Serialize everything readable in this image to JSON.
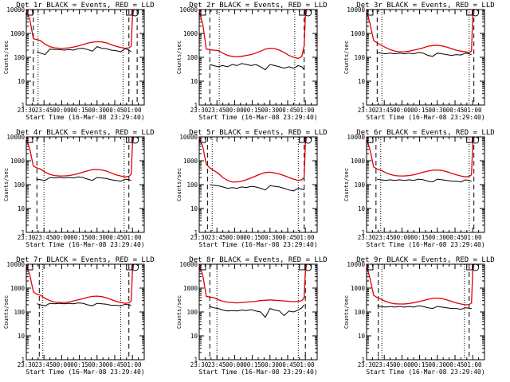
{
  "figure": {
    "x_tick_labels": [
      "23:30",
      "23:45",
      "00:00",
      "00:15",
      "00:30",
      "00:45",
      "01:00"
    ],
    "y_tick_labels": [
      "1",
      "10",
      "100",
      "1000",
      "10000"
    ],
    "xlabel": "Start Time (16-Mar-08 23:29:40)",
    "ylabel": "Counts/sec",
    "colors": {
      "events": "#000000",
      "lld": "#e00000",
      "axes": "#000000",
      "background": "#ffffff"
    },
    "markers": [
      "square",
      "circle"
    ]
  },
  "chart_data": [
    {
      "type": "line",
      "title": "Det  1r BLACK = Events, RED = LLD",
      "xlabel": "Start Time (16-Mar-08 23:29:40)",
      "ylabel": "Counts/sec",
      "x_unit": "minutes after 23:30",
      "xlim": [
        0,
        100
      ],
      "ylim": [
        1,
        10000
      ],
      "yscale": "log",
      "x": [
        0,
        3,
        6,
        9,
        12,
        16,
        20,
        24,
        28,
        32,
        36,
        40,
        44,
        48,
        52,
        56,
        60,
        64,
        68,
        72,
        76,
        80,
        84,
        87,
        89,
        90,
        91
      ],
      "series": [
        {
          "name": "LLD",
          "color": "#e00000",
          "values": [
            9000,
            3800,
            600,
            550,
            500,
            350,
            280,
            250,
            240,
            240,
            250,
            270,
            300,
            340,
            390,
            430,
            450,
            440,
            400,
            340,
            290,
            260,
            240,
            250,
            300,
            5000,
            9000
          ]
        },
        {
          "name": "Events",
          "color": "#000000",
          "values": [
            null,
            null,
            null,
            170,
            150,
            130,
            220,
            210,
            210,
            200,
            210,
            200,
            230,
            240,
            210,
            180,
            280,
            240,
            230,
            200,
            190,
            170,
            230,
            200,
            170,
            null,
            null
          ]
        }
      ],
      "dashed_lines_x": [
        6,
        87,
        94
      ],
      "dotted_lines_x": [
        10,
        82
      ]
    },
    {
      "type": "line",
      "title": "Det  2r BLACK = Events, RED = LLD",
      "xlabel": "Start Time (16-Mar-08 23:29:40)",
      "ylabel": "Counts/sec",
      "x_unit": "minutes after 23:30",
      "xlim": [
        0,
        100
      ],
      "ylim": [
        1,
        10000
      ],
      "yscale": "log",
      "x": [
        0,
        3,
        6,
        9,
        12,
        16,
        20,
        24,
        28,
        32,
        36,
        40,
        44,
        48,
        52,
        56,
        60,
        64,
        68,
        72,
        76,
        80,
        84,
        87,
        89,
        90,
        91
      ],
      "series": [
        {
          "name": "LLD",
          "color": "#e00000",
          "values": [
            9000,
            2500,
            220,
            210,
            200,
            190,
            150,
            120,
            110,
            105,
            110,
            120,
            130,
            150,
            180,
            220,
            240,
            230,
            200,
            160,
            120,
            100,
            90,
            110,
            300,
            5000,
            9000
          ]
        },
        {
          "name": "Events",
          "color": "#000000",
          "values": [
            null,
            null,
            null,
            50,
            45,
            40,
            45,
            40,
            50,
            45,
            55,
            50,
            45,
            50,
            40,
            30,
            50,
            45,
            40,
            35,
            40,
            35,
            45,
            40,
            30,
            null,
            null
          ]
        }
      ],
      "dashed_lines_x": [
        9,
        89
      ],
      "dotted_lines_x": [
        17,
        81
      ]
    },
    {
      "type": "line",
      "title": "Det  3r BLACK = Events, RED = LLD",
      "xlabel": "Start Time (16-Mar-08 23:29:40)",
      "ylabel": "Counts/sec",
      "x_unit": "minutes after 23:30",
      "xlim": [
        0,
        100
      ],
      "ylim": [
        1,
        10000
      ],
      "yscale": "log",
      "x": [
        0,
        3,
        6,
        9,
        12,
        16,
        20,
        24,
        28,
        32,
        36,
        40,
        44,
        48,
        52,
        56,
        60,
        64,
        68,
        72,
        76,
        80,
        84,
        87,
        89,
        90,
        91
      ],
      "series": [
        {
          "name": "LLD",
          "color": "#e00000",
          "values": [
            9000,
            2500,
            500,
            400,
            330,
            260,
            210,
            180,
            170,
            170,
            180,
            200,
            220,
            250,
            290,
            310,
            320,
            300,
            270,
            230,
            200,
            180,
            170,
            160,
            180,
            5000,
            9000
          ]
        },
        {
          "name": "Events",
          "color": "#000000",
          "values": [
            null,
            null,
            null,
            160,
            150,
            140,
            150,
            140,
            150,
            140,
            150,
            140,
            160,
            150,
            120,
            110,
            150,
            140,
            130,
            120,
            130,
            125,
            150,
            140,
            130,
            null,
            null
          ]
        }
      ],
      "dashed_lines_x": [
        9,
        91
      ],
      "dotted_lines_x": [
        13,
        87
      ]
    },
    {
      "type": "line",
      "title": "Det  4r BLACK = Events, RED = LLD",
      "xlabel": "Start Time (16-Mar-08 23:29:40)",
      "ylabel": "Counts/sec",
      "x_unit": "minutes after 23:30",
      "xlim": [
        0,
        100
      ],
      "ylim": [
        1,
        10000
      ],
      "yscale": "log",
      "x": [
        0,
        3,
        6,
        9,
        12,
        16,
        20,
        24,
        28,
        32,
        36,
        40,
        44,
        48,
        52,
        56,
        60,
        64,
        68,
        72,
        76,
        80,
        84,
        87,
        89,
        90,
        91
      ],
      "series": [
        {
          "name": "LLD",
          "color": "#e00000",
          "values": [
            9000,
            3000,
            600,
            500,
            450,
            330,
            270,
            240,
            230,
            230,
            240,
            260,
            290,
            330,
            380,
            420,
            430,
            410,
            370,
            310,
            260,
            230,
            210,
            220,
            280,
            5000,
            9000
          ]
        },
        {
          "name": "Events",
          "color": "#000000",
          "values": [
            null,
            null,
            null,
            170,
            160,
            150,
            200,
            190,
            200,
            190,
            200,
            190,
            210,
            200,
            170,
            150,
            200,
            190,
            180,
            160,
            150,
            140,
            170,
            160,
            150,
            null,
            null
          ]
        }
      ],
      "dashed_lines_x": [
        9,
        87
      ],
      "dotted_lines_x": [
        15,
        83
      ]
    },
    {
      "type": "line",
      "title": "Det  5r BLACK = Events, RED = LLD",
      "xlabel": "Start Time (16-Mar-08 23:29:40)",
      "ylabel": "Counts/sec",
      "x_unit": "minutes after 23:30",
      "xlim": [
        0,
        100
      ],
      "ylim": [
        1,
        10000
      ],
      "yscale": "log",
      "x": [
        0,
        3,
        6,
        9,
        12,
        16,
        20,
        24,
        28,
        32,
        36,
        40,
        44,
        48,
        52,
        56,
        60,
        64,
        68,
        72,
        76,
        80,
        84,
        87,
        89,
        90,
        91
      ],
      "series": [
        {
          "name": "LLD",
          "color": "#e00000",
          "values": [
            9000,
            4000,
            700,
            500,
            400,
            300,
            200,
            150,
            130,
            130,
            140,
            160,
            190,
            230,
            280,
            320,
            330,
            310,
            280,
            240,
            200,
            170,
            150,
            160,
            200,
            5000,
            9000
          ]
        },
        {
          "name": "Events",
          "color": "#000000",
          "values": [
            null,
            null,
            null,
            100,
            95,
            90,
            80,
            70,
            75,
            70,
            80,
            75,
            85,
            80,
            70,
            60,
            90,
            85,
            80,
            70,
            60,
            55,
            70,
            65,
            60,
            null,
            null
          ]
        }
      ],
      "dashed_lines_x": [
        7,
        89
      ],
      "dotted_lines_x": [
        11,
        84
      ]
    },
    {
      "type": "line",
      "title": "Det  6r BLACK = Events, RED = LLD",
      "xlabel": "Start Time (16-Mar-08 23:29:40)",
      "ylabel": "Counts/sec",
      "x_unit": "minutes after 23:30",
      "xlim": [
        0,
        100
      ],
      "ylim": [
        1,
        10000
      ],
      "yscale": "log",
      "x": [
        0,
        3,
        6,
        9,
        12,
        16,
        20,
        24,
        28,
        32,
        36,
        40,
        44,
        48,
        52,
        56,
        60,
        64,
        68,
        72,
        76,
        80,
        84,
        87,
        89,
        90,
        91
      ],
      "series": [
        {
          "name": "LLD",
          "color": "#e00000",
          "values": [
            9000,
            2800,
            550,
            450,
            400,
            320,
            270,
            240,
            230,
            230,
            240,
            260,
            290,
            330,
            370,
            400,
            410,
            390,
            350,
            300,
            260,
            230,
            210,
            220,
            260,
            5000,
            9000
          ]
        },
        {
          "name": "Events",
          "color": "#000000",
          "values": [
            null,
            null,
            null,
            170,
            160,
            150,
            160,
            150,
            160,
            150,
            160,
            150,
            170,
            160,
            140,
            130,
            170,
            160,
            150,
            140,
            140,
            130,
            160,
            150,
            140,
            null,
            null
          ]
        }
      ],
      "dashed_lines_x": [
        8,
        91
      ],
      "dotted_lines_x": [
        12,
        87
      ]
    },
    {
      "type": "line",
      "title": "Det  7r BLACK = Events, RED = LLD",
      "xlabel": "Start Time (16-Mar-08 23:29:40)",
      "ylabel": "Counts/sec",
      "x_unit": "minutes after 23:30",
      "xlim": [
        0,
        100
      ],
      "ylim": [
        1,
        10000
      ],
      "yscale": "log",
      "x": [
        0,
        3,
        6,
        9,
        12,
        16,
        20,
        24,
        28,
        32,
        36,
        40,
        44,
        48,
        52,
        56,
        60,
        64,
        68,
        72,
        76,
        80,
        84,
        87,
        89,
        90,
        91
      ],
      "series": [
        {
          "name": "LLD",
          "color": "#e00000",
          "values": [
            9000,
            3500,
            700,
            550,
            500,
            370,
            300,
            260,
            250,
            250,
            260,
            290,
            320,
            360,
            410,
            450,
            460,
            440,
            390,
            330,
            280,
            250,
            230,
            240,
            300,
            5000,
            9000
          ]
        },
        {
          "name": "Events",
          "color": "#000000",
          "values": [
            null,
            null,
            null,
            220,
            200,
            180,
            230,
            220,
            230,
            220,
            230,
            220,
            240,
            230,
            200,
            180,
            230,
            220,
            210,
            190,
            190,
            180,
            210,
            200,
            190,
            null,
            null
          ]
        }
      ],
      "dashed_lines_x": [
        11,
        87
      ],
      "dotted_lines_x": [
        14,
        80
      ]
    },
    {
      "type": "line",
      "title": "Det  8r BLACK = Events, RED = LLD",
      "xlabel": "Start Time (16-Mar-08 23:29:40)",
      "ylabel": "Counts/sec",
      "x_unit": "minutes after 23:30",
      "xlim": [
        0,
        100
      ],
      "ylim": [
        1,
        10000
      ],
      "yscale": "log",
      "x": [
        0,
        3,
        6,
        9,
        12,
        16,
        20,
        24,
        28,
        32,
        36,
        40,
        44,
        48,
        52,
        56,
        60,
        64,
        68,
        72,
        76,
        80,
        84,
        87,
        89,
        90,
        91
      ],
      "series": [
        {
          "name": "LLD",
          "color": "#e00000",
          "values": [
            9000,
            3500,
            450,
            420,
            400,
            330,
            280,
            260,
            250,
            240,
            250,
            260,
            270,
            280,
            300,
            310,
            320,
            310,
            300,
            290,
            280,
            270,
            280,
            300,
            400,
            5000,
            9000
          ]
        },
        {
          "name": "Events",
          "color": "#000000",
          "values": [
            null,
            null,
            null,
            170,
            150,
            140,
            120,
            110,
            115,
            110,
            120,
            115,
            125,
            110,
            100,
            60,
            140,
            120,
            110,
            70,
            110,
            100,
            120,
            150,
            200,
            null,
            null
          ]
        }
      ],
      "dashed_lines_x": [
        9,
        90
      ],
      "dotted_lines_x": [
        15,
        84
      ]
    },
    {
      "type": "line",
      "title": "Det  9r BLACK = Events, RED = LLD",
      "xlabel": "Start Time (16-Mar-08 23:29:40)",
      "ylabel": "Counts/sec",
      "x_unit": "minutes after 23:30",
      "xlim": [
        0,
        100
      ],
      "ylim": [
        1,
        10000
      ],
      "yscale": "log",
      "x": [
        0,
        3,
        6,
        9,
        12,
        16,
        20,
        24,
        28,
        32,
        36,
        40,
        44,
        48,
        52,
        56,
        60,
        64,
        68,
        72,
        76,
        80,
        84,
        87,
        89,
        90,
        91
      ],
      "series": [
        {
          "name": "LLD",
          "color": "#e00000",
          "values": [
            9000,
            2500,
            500,
            400,
            350,
            280,
            240,
            220,
            215,
            215,
            225,
            245,
            270,
            300,
            340,
            370,
            380,
            360,
            320,
            280,
            240,
            215,
            200,
            205,
            240,
            5000,
            9000
          ]
        },
        {
          "name": "Events",
          "color": "#000000",
          "values": [
            null,
            null,
            null,
            180,
            170,
            160,
            170,
            160,
            170,
            160,
            170,
            160,
            180,
            170,
            150,
            140,
            170,
            160,
            150,
            140,
            140,
            130,
            150,
            145,
            140,
            null,
            null
          ]
        }
      ],
      "dashed_lines_x": [
        10,
        87
      ],
      "dotted_lines_x": [
        13,
        83
      ]
    }
  ]
}
